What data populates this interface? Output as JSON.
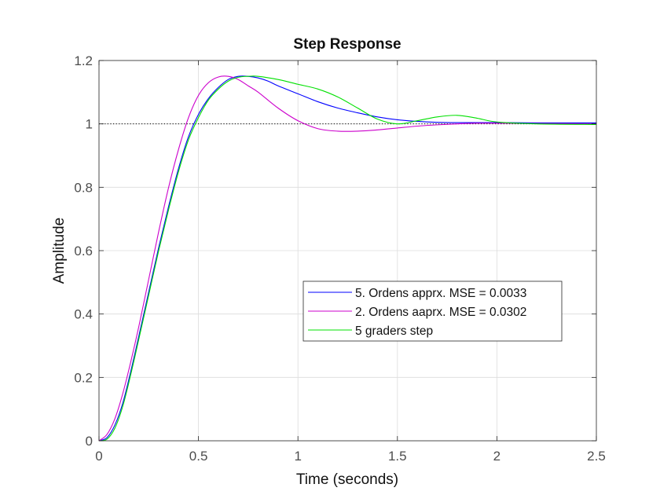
{
  "chart_data": {
    "type": "line",
    "title": "Step Response",
    "xlabel": "Time (seconds)",
    "ylabel": "Amplitude",
    "xlim": [
      0,
      2.5
    ],
    "ylim": [
      0,
      1.2
    ],
    "xticks": [
      "0",
      "0.5",
      "1",
      "1.5",
      "2",
      "2.5"
    ],
    "yticks": [
      "0",
      "0.2",
      "0.4",
      "0.6",
      "0.8",
      "1",
      "1.2"
    ],
    "grid": true,
    "legend_position": "center-right",
    "reference_line": {
      "y": 1,
      "style": "dotted",
      "color": "#000000"
    },
    "series": [
      {
        "name": "5. Ordens apprx. MSE = 0.0033",
        "color": "#0000ff",
        "x": [
          0,
          0.04,
          0.08,
          0.12,
          0.16,
          0.2,
          0.25,
          0.3,
          0.35,
          0.4,
          0.45,
          0.5,
          0.55,
          0.6,
          0.65,
          0.7,
          0.75,
          0.8,
          0.85,
          0.9,
          1.0,
          1.1,
          1.2,
          1.3,
          1.4,
          1.5,
          1.6,
          1.7,
          1.8,
          1.9,
          2.0,
          2.2,
          2.5
        ],
        "y": [
          0,
          0.01,
          0.05,
          0.12,
          0.22,
          0.33,
          0.47,
          0.61,
          0.74,
          0.86,
          0.96,
          1.03,
          1.08,
          1.115,
          1.14,
          1.15,
          1.15,
          1.145,
          1.135,
          1.12,
          1.095,
          1.07,
          1.05,
          1.035,
          1.022,
          1.013,
          1.008,
          1.005,
          1.004,
          1.004,
          1.004,
          1.003,
          1.003
        ]
      },
      {
        "name": "2. Ordens aaprx. MSE = 0.0302",
        "color": "#cc00cc",
        "x": [
          0,
          0.04,
          0.08,
          0.12,
          0.16,
          0.2,
          0.25,
          0.3,
          0.35,
          0.4,
          0.45,
          0.5,
          0.55,
          0.6,
          0.65,
          0.7,
          0.75,
          0.8,
          0.9,
          1.0,
          1.1,
          1.2,
          1.3,
          1.4,
          1.5,
          1.6,
          1.7,
          1.8,
          1.9,
          2.0,
          2.2,
          2.5
        ],
        "y": [
          0,
          0.02,
          0.07,
          0.15,
          0.25,
          0.36,
          0.51,
          0.66,
          0.8,
          0.92,
          1.02,
          1.09,
          1.13,
          1.148,
          1.15,
          1.14,
          1.12,
          1.1,
          1.05,
          1.01,
          0.985,
          0.977,
          0.977,
          0.981,
          0.987,
          0.993,
          0.997,
          1.0,
          1.002,
          1.002,
          1.001,
          1.0
        ]
      },
      {
        "name": "5 graders step",
        "color": "#00e000",
        "x": [
          0,
          0.04,
          0.08,
          0.12,
          0.16,
          0.2,
          0.25,
          0.3,
          0.35,
          0.4,
          0.45,
          0.5,
          0.55,
          0.6,
          0.65,
          0.7,
          0.75,
          0.8,
          0.9,
          1.0,
          1.1,
          1.2,
          1.3,
          1.4,
          1.5,
          1.6,
          1.7,
          1.8,
          1.9,
          2.0,
          2.2,
          2.5
        ],
        "y": [
          0,
          0.005,
          0.04,
          0.11,
          0.21,
          0.32,
          0.46,
          0.6,
          0.73,
          0.85,
          0.95,
          1.02,
          1.075,
          1.11,
          1.135,
          1.147,
          1.15,
          1.15,
          1.14,
          1.125,
          1.11,
          1.085,
          1.05,
          1.015,
          1.0,
          1.01,
          1.022,
          1.027,
          1.018,
          1.006,
          1.0,
          0.998
        ]
      }
    ]
  }
}
